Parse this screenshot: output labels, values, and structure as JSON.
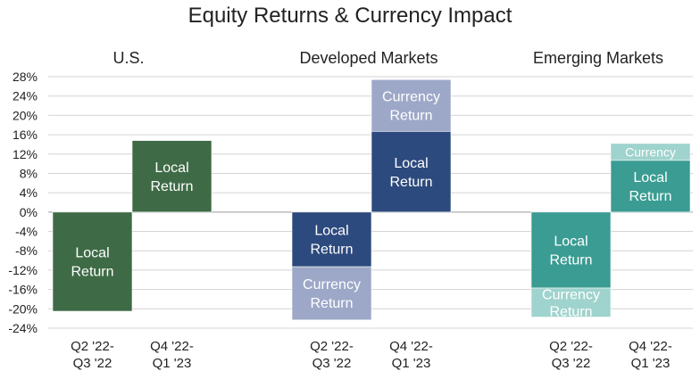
{
  "chart_data": {
    "type": "bar",
    "stacked": true,
    "title": "Equity Returns & Currency Impact",
    "ylim": [
      -24,
      28
    ],
    "yticks": [
      28,
      24,
      20,
      16,
      12,
      8,
      4,
      0,
      -4,
      -8,
      -12,
      -16,
      -20,
      -24
    ],
    "ytick_labels": [
      "28%",
      "24%",
      "20%",
      "16%",
      "12%",
      "8%",
      "4%",
      "0%",
      "-4%",
      "-8%",
      "-12%",
      "-16%",
      "-20%",
      "-24%"
    ],
    "grid": true,
    "groups": [
      {
        "name": "U.S.",
        "bars": [
          {
            "category": [
              "Q2 '22-",
              "Q3 '22"
            ],
            "segments": [
              {
                "label": [
                  "Local",
                  "Return"
                ],
                "value": -20.5,
                "color": "#3e6b46",
                "text_color": "#ffffff"
              }
            ]
          },
          {
            "category": [
              "Q4 '22-",
              "Q1 '23"
            ],
            "segments": [
              {
                "label": [
                  "Local",
                  "Return"
                ],
                "value": 14.8,
                "color": "#3e6b46",
                "text_color": "#ffffff"
              }
            ]
          }
        ]
      },
      {
        "name": "Developed Markets",
        "bars": [
          {
            "category": [
              "Q2 '22-",
              "Q3 '22"
            ],
            "segments": [
              {
                "label": [
                  "Local",
                  "Return"
                ],
                "value": -11.3,
                "color": "#2d4a7e",
                "text_color": "#ffffff"
              },
              {
                "label": [
                  "Currency",
                  "Return"
                ],
                "value": -11.0,
                "color": "#9da8c8",
                "text_color": "#ffffff"
              }
            ]
          },
          {
            "category": [
              "Q4 '22-",
              "Q1 '23"
            ],
            "segments": [
              {
                "label": [
                  "Local",
                  "Return"
                ],
                "value": 16.7,
                "color": "#2d4a7e",
                "text_color": "#ffffff"
              },
              {
                "label": [
                  "Currency",
                  "Return"
                ],
                "value": 10.7,
                "color": "#9da8c8",
                "text_color": "#ffffff"
              }
            ]
          }
        ]
      },
      {
        "name": "Emerging Markets",
        "bars": [
          {
            "category": [
              "Q2 '22-",
              "Q3 '22"
            ],
            "segments": [
              {
                "label": [
                  "Local",
                  "Return"
                ],
                "value": -15.7,
                "color": "#3a9c92",
                "text_color": "#ffffff"
              },
              {
                "label": [
                  "Currency",
                  "Return"
                ],
                "value": -6.0,
                "color": "#9fd3cd",
                "text_color": "#ffffff"
              }
            ]
          },
          {
            "category": [
              "Q4 '22-",
              "Q1 '23"
            ],
            "segments": [
              {
                "label": [
                  "Local",
                  "Return"
                ],
                "value": 10.7,
                "color": "#3a9c92",
                "text_color": "#ffffff"
              },
              {
                "label": [
                  "Currency"
                ],
                "value": 3.5,
                "color": "#9fd3cd",
                "text_color": "#ffffff"
              }
            ]
          }
        ]
      }
    ]
  }
}
